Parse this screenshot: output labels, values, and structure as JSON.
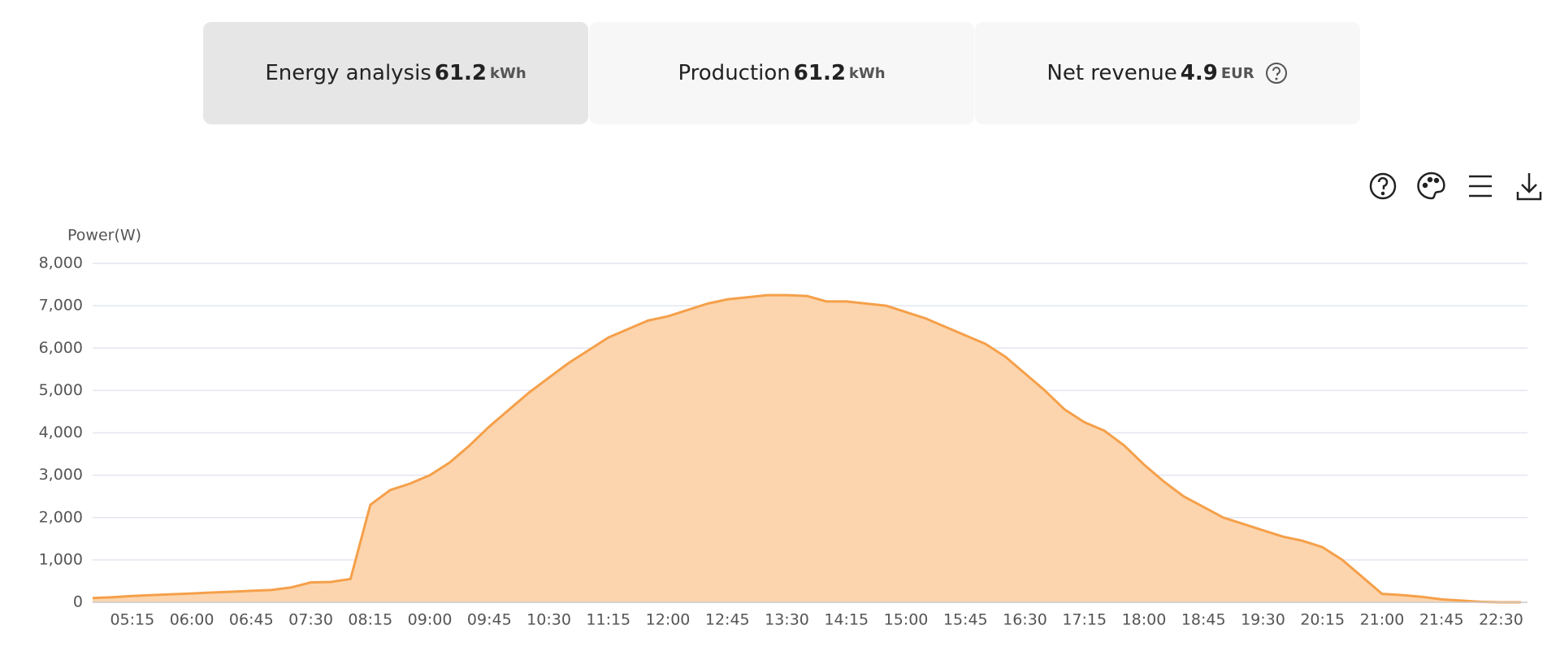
{
  "tabs": [
    {
      "label": "Energy analysis",
      "value": "61.2",
      "unit": "kWh"
    },
    {
      "label": "Production",
      "value": "61.2",
      "unit": "kWh"
    },
    {
      "label": "Net revenue",
      "value": "4.9",
      "unit": "EUR"
    }
  ],
  "chart_data": {
    "type": "area",
    "y_label": "Power(W)",
    "color": "#f5a04a",
    "fill": "#fcd5ae",
    "grid": true,
    "x": [
      "04:45",
      "05:00",
      "05:15",
      "05:30",
      "05:45",
      "06:00",
      "06:15",
      "06:30",
      "06:45",
      "07:00",
      "07:15",
      "07:30",
      "07:45",
      "08:00",
      "08:15",
      "08:30",
      "08:45",
      "09:00",
      "09:15",
      "09:30",
      "09:45",
      "10:00",
      "10:15",
      "10:30",
      "10:45",
      "11:00",
      "11:15",
      "11:30",
      "11:45",
      "12:00",
      "12:15",
      "12:30",
      "12:45",
      "13:00",
      "13:15",
      "13:30",
      "13:45",
      "14:00",
      "14:15",
      "14:30",
      "14:45",
      "15:00",
      "15:15",
      "15:30",
      "15:45",
      "16:00",
      "16:15",
      "16:30",
      "16:45",
      "17:00",
      "17:15",
      "17:30",
      "17:45",
      "18:00",
      "18:15",
      "18:30",
      "18:45",
      "19:00",
      "19:15",
      "19:30",
      "19:45",
      "20:00",
      "20:15",
      "20:30",
      "20:45",
      "21:00",
      "21:15",
      "21:30",
      "21:45",
      "22:00",
      "22:15",
      "22:30",
      "22:45"
    ],
    "values": [
      100,
      120,
      150,
      170,
      190,
      210,
      230,
      250,
      270,
      290,
      350,
      470,
      480,
      550,
      2300,
      2650,
      2800,
      3000,
      3300,
      3700,
      4150,
      4550,
      4950,
      5300,
      5650,
      5950,
      6250,
      6450,
      6650,
      6750,
      6900,
      7050,
      7150,
      7200,
      7250,
      7250,
      7230,
      7100,
      7100,
      7050,
      7000,
      6850,
      6700,
      6500,
      6300,
      6100,
      5800,
      5400,
      5000,
      4550,
      4250,
      4050,
      3700,
      3250,
      2850,
      2500,
      2250,
      2000,
      1850,
      1700,
      1550,
      1450,
      1300,
      1000,
      600,
      200,
      170,
      130,
      70,
      40,
      10,
      0,
      0
    ],
    "xlim": [
      "04:45",
      "22:50"
    ],
    "xticks": [
      "05:15",
      "06:00",
      "06:45",
      "07:30",
      "08:15",
      "09:00",
      "09:45",
      "10:30",
      "11:15",
      "12:00",
      "12:45",
      "13:30",
      "14:15",
      "15:00",
      "15:45",
      "16:30",
      "17:15",
      "18:00",
      "18:45",
      "19:30",
      "20:15",
      "21:00",
      "21:45",
      "22:30"
    ],
    "ylim": [
      0,
      8000
    ],
    "yticks": [
      0,
      {
        "value": 1000,
        "label": "1,000"
      },
      {
        "value": 2000,
        "label": "2,000"
      },
      {
        "value": 3000,
        "label": "3,000"
      },
      {
        "value": 4000,
        "label": "4,000"
      },
      {
        "value": 5000,
        "label": "5,000"
      },
      {
        "value": 6000,
        "label": "6,000"
      },
      {
        "value": 7000,
        "label": "7,000"
      },
      {
        "value": 8000,
        "label": "8,000"
      }
    ]
  }
}
